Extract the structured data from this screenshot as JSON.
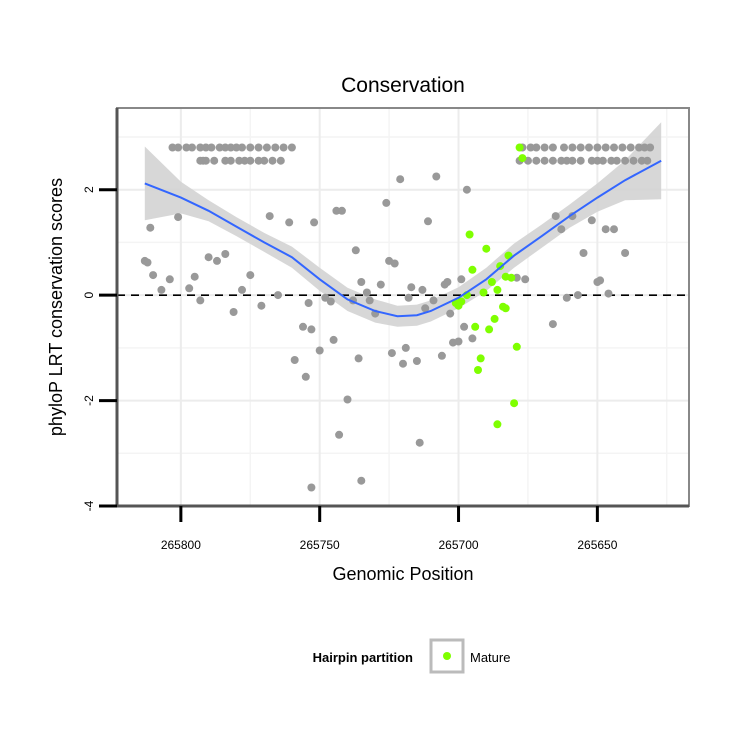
{
  "chart_data": {
    "type": "scatter",
    "title": "Conservation",
    "xlabel": "Genomic Position",
    "ylabel": "phyloP LRT conservation scores",
    "x_reversed": true,
    "xlim": [
      265823,
      265617
    ],
    "ylim": [
      -4,
      3.55
    ],
    "x_ticks": [
      265800,
      265750,
      265700,
      265650
    ],
    "y_ticks": [
      -4,
      -2,
      0,
      2
    ],
    "y_tick_labels": [
      "-4",
      "-2",
      "0",
      "2"
    ],
    "grid": true,
    "reference_line": {
      "y": 0,
      "style": "dashed"
    },
    "legend": {
      "title": "Hairpin partition",
      "position": "bottom",
      "entries": [
        "Mature"
      ]
    },
    "colors": {
      "Other": "#999999",
      "Mature": "#7FFF00",
      "smooth": "#3366FF",
      "ribbon": "#D3D3D3"
    },
    "series": [
      {
        "name": "Other",
        "points": [
          [
            265813,
            0.65
          ],
          [
            265812,
            0.62
          ],
          [
            265811,
            1.28
          ],
          [
            265810,
            0.38
          ],
          [
            265807,
            0.1
          ],
          [
            265804,
            0.3
          ],
          [
            265801,
            1.48
          ],
          [
            265797,
            0.13
          ],
          [
            265795,
            0.35
          ],
          [
            265793,
            -0.1
          ],
          [
            265790,
            0.72
          ],
          [
            265787,
            0.65
          ],
          [
            265784,
            0.78
          ],
          [
            265781,
            -0.32
          ],
          [
            265778,
            0.1
          ],
          [
            265775,
            0.38
          ],
          [
            265771,
            -0.2
          ],
          [
            265768,
            1.5
          ],
          [
            265765,
            0.0
          ],
          [
            265761,
            1.38
          ],
          [
            265759,
            -1.23
          ],
          [
            265756,
            -0.6
          ],
          [
            265755,
            -1.55
          ],
          [
            265754,
            -0.15
          ],
          [
            265753,
            -0.65
          ],
          [
            265752,
            1.38
          ],
          [
            265750,
            -1.05
          ],
          [
            265748,
            -0.05
          ],
          [
            265746,
            -0.12
          ],
          [
            265745,
            -0.85
          ],
          [
            265744,
            1.6
          ],
          [
            265743,
            -2.65
          ],
          [
            265742,
            1.6
          ],
          [
            265740,
            -1.98
          ],
          [
            265738,
            -0.1
          ],
          [
            265737,
            0.85
          ],
          [
            265736,
            -1.2
          ],
          [
            265735,
            0.25
          ],
          [
            265733,
            0.05
          ],
          [
            265732,
            -0.1
          ],
          [
            265730,
            -0.35
          ],
          [
            265728,
            0.2
          ],
          [
            265726,
            1.75
          ],
          [
            265725,
            0.65
          ],
          [
            265724,
            -1.1
          ],
          [
            265723,
            0.6
          ],
          [
            265721,
            2.2
          ],
          [
            265720,
            -1.3
          ],
          [
            265719,
            -1.0
          ],
          [
            265718,
            -0.05
          ],
          [
            265717,
            0.15
          ],
          [
            265715,
            -1.25
          ],
          [
            265714,
            -2.8
          ],
          [
            265713,
            0.1
          ],
          [
            265712,
            -0.25
          ],
          [
            265711,
            1.4
          ],
          [
            265709,
            -0.1
          ],
          [
            265708,
            2.25
          ],
          [
            265706,
            -1.15
          ],
          [
            265705,
            0.2
          ],
          [
            265704,
            0.25
          ],
          [
            265703,
            -0.35
          ],
          [
            265702,
            -0.9
          ],
          [
            265700,
            -0.88
          ],
          [
            265699,
            0.3
          ],
          [
            265698,
            -0.6
          ],
          [
            265697,
            2.0
          ],
          [
            265695,
            -0.82
          ],
          [
            265753,
            -3.65
          ],
          [
            265735,
            -3.52
          ],
          [
            265666,
            -0.55
          ],
          [
            265665,
            1.5
          ],
          [
            265663,
            1.25
          ],
          [
            265661,
            -0.05
          ],
          [
            265659,
            1.5
          ],
          [
            265657,
            0.0
          ],
          [
            265655,
            0.8
          ],
          [
            265652,
            1.42
          ],
          [
            265650,
            0.25
          ],
          [
            265649,
            0.28
          ],
          [
            265647,
            1.25
          ],
          [
            265646,
            0.03
          ],
          [
            265644,
            1.25
          ],
          [
            265640,
            0.8
          ],
          [
            265679,
            0.33
          ],
          [
            265676,
            0.3
          ],
          [
            265793,
            2.55
          ],
          [
            265792,
            2.55
          ],
          [
            265791,
            2.55
          ],
          [
            265788,
            2.55
          ],
          [
            265784,
            2.55
          ],
          [
            265782,
            2.55
          ],
          [
            265779,
            2.55
          ],
          [
            265777,
            2.55
          ],
          [
            265775,
            2.55
          ],
          [
            265772,
            2.55
          ],
          [
            265770,
            2.55
          ],
          [
            265767,
            2.55
          ],
          [
            265764,
            2.55
          ],
          [
            265803,
            2.8
          ],
          [
            265801,
            2.8
          ],
          [
            265798,
            2.8
          ],
          [
            265796,
            2.8
          ],
          [
            265793,
            2.8
          ],
          [
            265791,
            2.8
          ],
          [
            265789,
            2.8
          ],
          [
            265786,
            2.8
          ],
          [
            265784,
            2.8
          ],
          [
            265782,
            2.8
          ],
          [
            265780,
            2.8
          ],
          [
            265778,
            2.8
          ],
          [
            265775,
            2.8
          ],
          [
            265772,
            2.8
          ],
          [
            265769,
            2.8
          ],
          [
            265766,
            2.8
          ],
          [
            265763,
            2.8
          ],
          [
            265760,
            2.8
          ],
          [
            265678,
            2.55
          ],
          [
            265675,
            2.55
          ],
          [
            265672,
            2.55
          ],
          [
            265669,
            2.55
          ],
          [
            265666,
            2.55
          ],
          [
            265663,
            2.55
          ],
          [
            265661,
            2.55
          ],
          [
            265659,
            2.55
          ],
          [
            265656,
            2.55
          ],
          [
            265652,
            2.55
          ],
          [
            265650,
            2.55
          ],
          [
            265648,
            2.55
          ],
          [
            265645,
            2.55
          ],
          [
            265643,
            2.55
          ],
          [
            265640,
            2.55
          ],
          [
            265637,
            2.55
          ],
          [
            265634,
            2.55
          ],
          [
            265632,
            2.55
          ],
          [
            265677,
            2.8
          ],
          [
            265674,
            2.8
          ],
          [
            265672,
            2.8
          ],
          [
            265669,
            2.8
          ],
          [
            265666,
            2.8
          ],
          [
            265662,
            2.8
          ],
          [
            265659,
            2.8
          ],
          [
            265656,
            2.8
          ],
          [
            265653,
            2.8
          ],
          [
            265650,
            2.8
          ],
          [
            265647,
            2.8
          ],
          [
            265644,
            2.8
          ],
          [
            265641,
            2.8
          ],
          [
            265638,
            2.8
          ],
          [
            265635,
            2.8
          ],
          [
            265633,
            2.8
          ],
          [
            265631,
            2.8
          ]
        ]
      },
      {
        "name": "Mature",
        "points": [
          [
            265696,
            1.15
          ],
          [
            265695,
            0.48
          ],
          [
            265694,
            -0.6
          ],
          [
            265693,
            -1.42
          ],
          [
            265692,
            -1.2
          ],
          [
            265691,
            0.05
          ],
          [
            265690,
            0.88
          ],
          [
            265689,
            -0.65
          ],
          [
            265688,
            0.25
          ],
          [
            265687,
            -0.45
          ],
          [
            265686,
            -2.45
          ],
          [
            265685,
            0.55
          ],
          [
            265684,
            -0.22
          ],
          [
            265683,
            0.35
          ],
          [
            265682,
            0.75
          ],
          [
            265681,
            0.33
          ],
          [
            265680,
            -2.05
          ],
          [
            265679,
            -0.98
          ],
          [
            265678,
            2.8
          ],
          [
            265677,
            2.6
          ],
          [
            265699,
            -0.12
          ],
          [
            265697,
            0.0
          ],
          [
            265701,
            -0.15
          ],
          [
            265700,
            -0.2
          ],
          [
            265686,
            0.1
          ],
          [
            265683,
            -0.25
          ]
        ]
      }
    ],
    "smooth_curve": {
      "x": [
        265813,
        265800,
        265790,
        265780,
        265770,
        265760,
        265750,
        265740,
        265730,
        265722,
        265715,
        265710,
        265700,
        265690,
        265680,
        265670,
        265660,
        265650,
        265640,
        265627
      ],
      "y": [
        2.12,
        1.85,
        1.6,
        1.3,
        1.0,
        0.72,
        0.3,
        -0.08,
        -0.3,
        -0.4,
        -0.38,
        -0.3,
        -0.05,
        0.3,
        0.75,
        1.12,
        1.5,
        1.85,
        2.18,
        2.55
      ],
      "ci_low": [
        1.42,
        1.55,
        1.4,
        1.12,
        0.82,
        0.52,
        0.08,
        -0.3,
        -0.52,
        -0.6,
        -0.58,
        -0.5,
        -0.25,
        0.08,
        0.52,
        0.9,
        1.28,
        1.58,
        1.8,
        1.82
      ],
      "ci_high": [
        2.82,
        2.15,
        1.8,
        1.48,
        1.18,
        0.92,
        0.52,
        0.14,
        -0.08,
        -0.2,
        -0.18,
        -0.1,
        0.15,
        0.52,
        0.98,
        1.34,
        1.72,
        2.12,
        2.56,
        3.28
      ]
    }
  }
}
